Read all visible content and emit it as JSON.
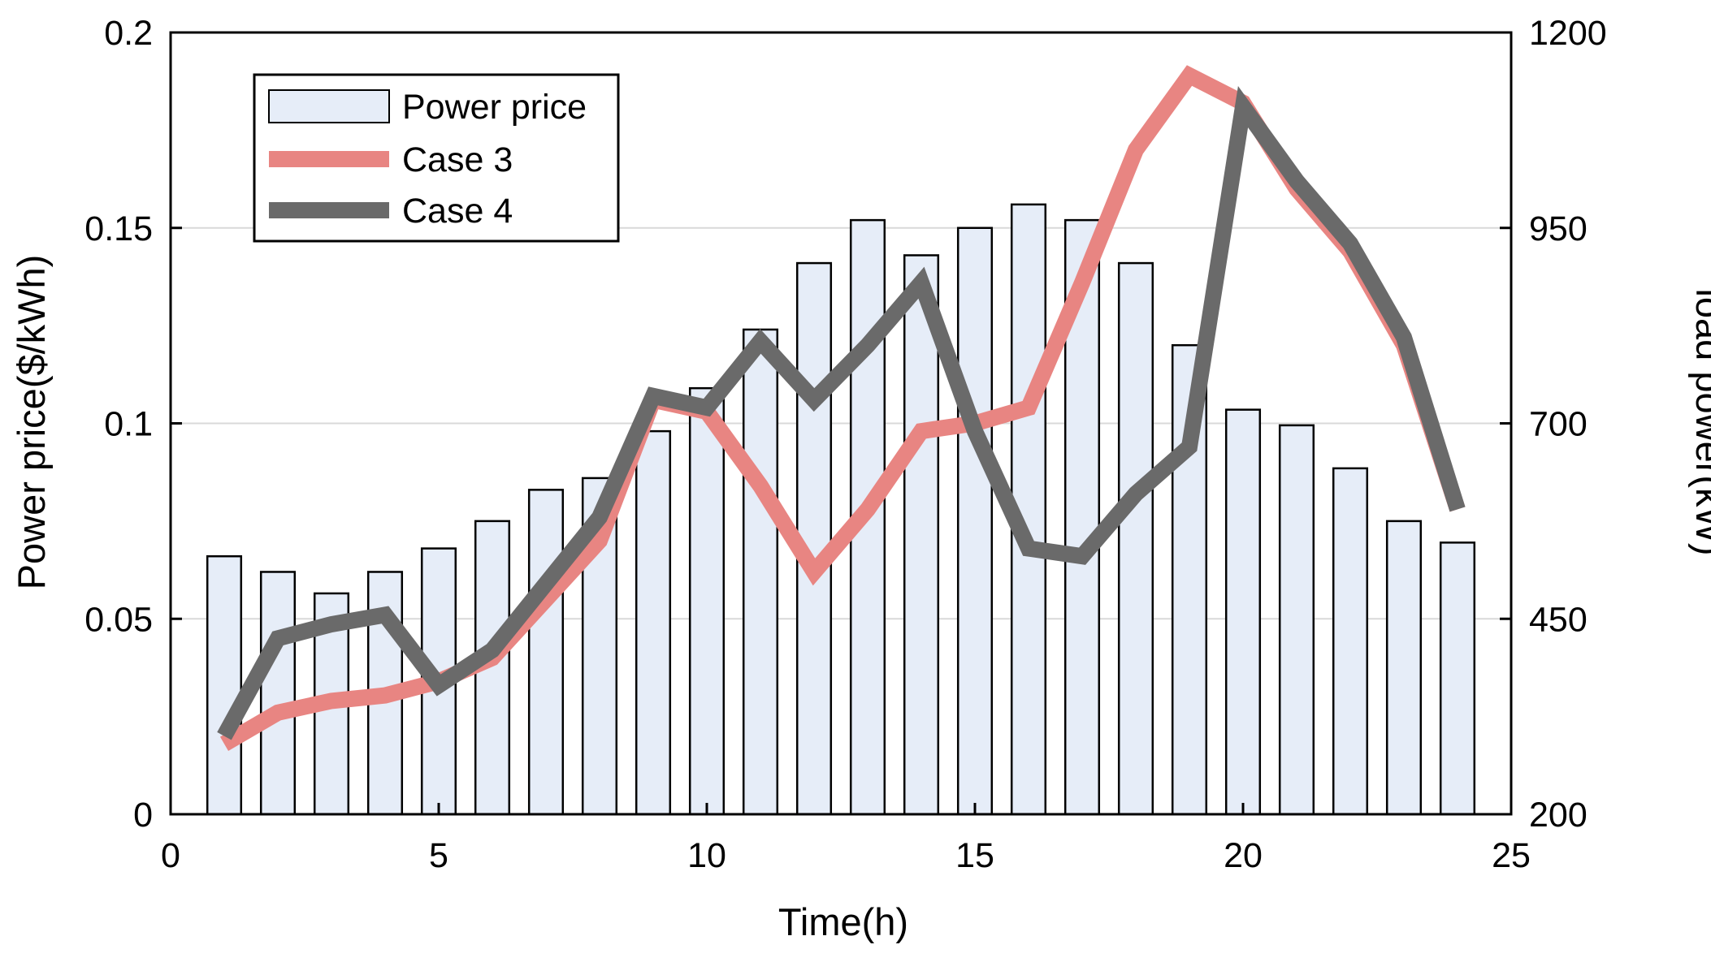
{
  "chart_data": {
    "type": "bar+line",
    "title": "",
    "xlabel": "Time(h)",
    "ylabel_left": "Power price($/kWh)",
    "ylabel_right": "load power(kW)",
    "xlim": [
      0,
      25
    ],
    "ylim_left": [
      0,
      0.2
    ],
    "ylim_right": [
      200,
      1200
    ],
    "x_ticks": [
      "0",
      "5",
      "10",
      "15",
      "20",
      "25"
    ],
    "y_left_ticks": [
      "0",
      "0.05",
      "0.1",
      "0.15",
      "0.2"
    ],
    "y_right_ticks": [
      "200",
      "450",
      "700",
      "950",
      "1200"
    ],
    "grid": "horizontal",
    "legend_position": "top-left",
    "hours": [
      1,
      2,
      3,
      4,
      5,
      6,
      7,
      8,
      9,
      10,
      11,
      12,
      13,
      14,
      15,
      16,
      17,
      18,
      19,
      20,
      21,
      22,
      23,
      24
    ],
    "bar_series": {
      "name": "Power price",
      "axis": "left",
      "color": "#e6edf8",
      "edge_color": "#000000",
      "values": [
        0.066,
        0.062,
        0.0565,
        0.062,
        0.068,
        0.075,
        0.083,
        0.086,
        0.098,
        0.109,
        0.124,
        0.141,
        0.152,
        0.143,
        0.15,
        0.156,
        0.152,
        0.141,
        0.12,
        0.1035,
        0.0995,
        0.0885,
        0.075,
        0.0695
      ]
    },
    "line_series": [
      {
        "name": "Case 3",
        "axis": "right",
        "color": "#e88582",
        "values": [
          290,
          330,
          345,
          352,
          370,
          400,
          475,
          550,
          730,
          715,
          620,
          510,
          590,
          690,
          700,
          720,
          880,
          1050,
          1145,
          1110,
          1000,
          920,
          800,
          590
        ]
      },
      {
        "name": "Case 4",
        "axis": "right",
        "color": "#6a6a6a",
        "values": [
          300,
          425,
          443,
          455,
          365,
          410,
          495,
          580,
          735,
          720,
          805,
          730,
          800,
          880,
          690,
          540,
          530,
          610,
          670,
          1105,
          1010,
          930,
          810,
          590
        ]
      }
    ]
  },
  "legend": {
    "items": [
      {
        "label": "Power price"
      },
      {
        "label": "Case 3"
      },
      {
        "label": "Case 4"
      }
    ]
  }
}
